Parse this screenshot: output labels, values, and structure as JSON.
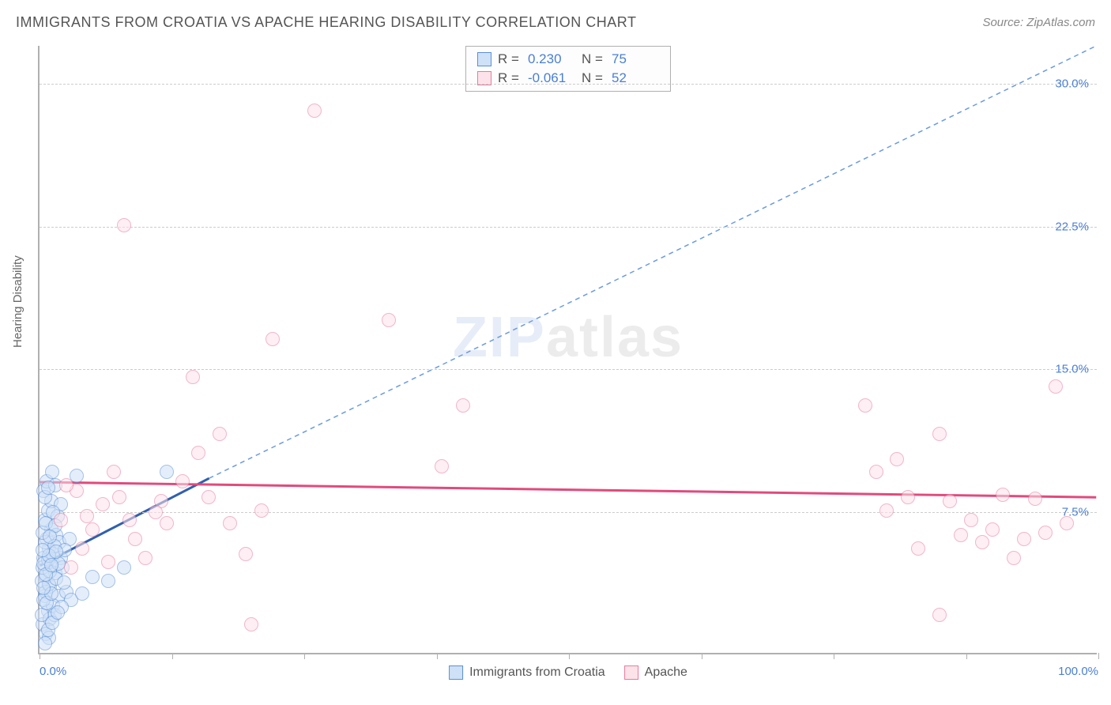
{
  "title": "IMMIGRANTS FROM CROATIA VS APACHE HEARING DISABILITY CORRELATION CHART",
  "source": "Source: ZipAtlas.com",
  "y_label": "Hearing Disability",
  "watermark_zip": "ZIP",
  "watermark_atlas": "atlas",
  "chart": {
    "type": "scatter",
    "xlim": [
      0,
      100
    ],
    "ylim": [
      0,
      32
    ],
    "x_ticks": [
      0,
      12.5,
      25,
      37.5,
      50,
      62.5,
      75,
      87.5,
      100
    ],
    "x_tick_labels": {
      "0": "0.0%",
      "100": "100.0%"
    },
    "y_gridlines": [
      7.5,
      15.0,
      22.5,
      30.0
    ],
    "y_tick_labels": [
      "7.5%",
      "15.0%",
      "22.5%",
      "30.0%"
    ],
    "grid_color": "#cccccc",
    "background_color": "#ffffff",
    "axis_color": "#b0b0b0",
    "tick_label_color": "#4a7fd4",
    "marker_radius": 9,
    "marker_stroke_width": 1.5,
    "series": [
      {
        "name": "Immigrants from Croatia",
        "fill": "#cfe1f7",
        "stroke": "#5b8fd6",
        "fill_opacity": 0.55,
        "R": "0.230",
        "N": "75",
        "trend": {
          "x1": 0,
          "y1": 4.6,
          "x2": 16,
          "y2": 9.2,
          "color": "#2f5fb0",
          "width": 3,
          "dash": "none"
        },
        "trend_ext": {
          "x1": 16,
          "y1": 9.2,
          "x2": 100,
          "y2": 32,
          "color": "#6a9be0",
          "width": 1.5,
          "dash": "6,5"
        },
        "points": [
          [
            0.5,
            3.0
          ],
          [
            0.8,
            2.2
          ],
          [
            0.6,
            4.0
          ],
          [
            1.0,
            3.5
          ],
          [
            1.2,
            4.8
          ],
          [
            0.4,
            5.0
          ],
          [
            0.9,
            5.5
          ],
          [
            1.5,
            4.2
          ],
          [
            1.8,
            3.0
          ],
          [
            2.0,
            5.0
          ],
          [
            0.7,
            6.0
          ],
          [
            1.1,
            6.5
          ],
          [
            1.3,
            2.5
          ],
          [
            0.3,
            1.5
          ],
          [
            0.6,
            1.0
          ],
          [
            1.0,
            1.8
          ],
          [
            1.4,
            2.0
          ],
          [
            0.5,
            7.0
          ],
          [
            0.8,
            7.5
          ],
          [
            1.6,
            6.2
          ],
          [
            2.2,
            4.5
          ],
          [
            2.5,
            3.2
          ],
          [
            0.2,
            3.8
          ],
          [
            0.9,
            0.8
          ],
          [
            1.1,
            8.0
          ],
          [
            1.7,
            7.2
          ],
          [
            0.4,
            8.5
          ],
          [
            0.7,
            9.0
          ],
          [
            1.9,
            5.8
          ],
          [
            3.0,
            2.8
          ],
          [
            3.5,
            9.3
          ],
          [
            4.0,
            3.1
          ],
          [
            0.3,
            4.5
          ],
          [
            0.6,
            3.2
          ],
          [
            1.2,
            9.5
          ],
          [
            1.5,
            8.8
          ],
          [
            2.8,
            6.0
          ],
          [
            5.0,
            4.0
          ],
          [
            6.5,
            3.8
          ],
          [
            8.0,
            4.5
          ],
          [
            1.0,
            4.3
          ],
          [
            0.8,
            4.9
          ],
          [
            0.5,
            5.8
          ],
          [
            1.3,
            5.2
          ],
          [
            1.8,
            4.7
          ],
          [
            0.4,
            2.8
          ],
          [
            0.9,
            3.6
          ],
          [
            1.6,
            3.9
          ],
          [
            2.1,
            2.4
          ],
          [
            0.2,
            2.0
          ],
          [
            0.7,
            2.6
          ],
          [
            1.1,
            3.1
          ],
          [
            1.4,
            5.6
          ],
          [
            0.3,
            6.3
          ],
          [
            0.6,
            6.8
          ],
          [
            2.4,
            5.4
          ],
          [
            0.5,
            0.5
          ],
          [
            0.8,
            1.2
          ],
          [
            1.2,
            1.6
          ],
          [
            1.7,
            2.1
          ],
          [
            0.4,
            4.7
          ],
          [
            0.9,
            5.1
          ],
          [
            1.5,
            6.7
          ],
          [
            2.0,
            7.8
          ],
          [
            12.0,
            9.5
          ],
          [
            0.3,
            5.4
          ],
          [
            0.6,
            4.1
          ],
          [
            1.0,
            6.1
          ],
          [
            1.3,
            7.4
          ],
          [
            0.5,
            8.2
          ],
          [
            0.8,
            8.7
          ],
          [
            1.1,
            4.6
          ],
          [
            1.6,
            5.3
          ],
          [
            2.3,
            3.7
          ],
          [
            0.4,
            3.4
          ]
        ]
      },
      {
        "name": "Apache",
        "fill": "#fce3ea",
        "stroke": "#e87a9e",
        "fill_opacity": 0.55,
        "R": "-0.061",
        "N": "52",
        "trend": {
          "x1": 0,
          "y1": 9.0,
          "x2": 100,
          "y2": 8.2,
          "color": "#e24a7c",
          "width": 3,
          "dash": "none"
        },
        "points": [
          [
            2.0,
            7.0
          ],
          [
            3.5,
            8.5
          ],
          [
            5.0,
            6.5
          ],
          [
            6.0,
            7.8
          ],
          [
            7.5,
            8.2
          ],
          [
            9.0,
            6.0
          ],
          [
            4.0,
            5.5
          ],
          [
            8.5,
            7.0
          ],
          [
            10.0,
            5.0
          ],
          [
            11.5,
            8.0
          ],
          [
            13.5,
            9.0
          ],
          [
            15.0,
            10.5
          ],
          [
            17.0,
            11.5
          ],
          [
            20.0,
            1.5
          ],
          [
            22.0,
            16.5
          ],
          [
            8.0,
            22.5
          ],
          [
            14.5,
            14.5
          ],
          [
            16.0,
            8.2
          ],
          [
            18.0,
            6.8
          ],
          [
            19.5,
            5.2
          ],
          [
            21.0,
            7.5
          ],
          [
            6.5,
            4.8
          ],
          [
            3.0,
            4.5
          ],
          [
            26.0,
            28.5
          ],
          [
            33.0,
            17.5
          ],
          [
            38.0,
            9.8
          ],
          [
            40.0,
            13.0
          ],
          [
            78.0,
            13.0
          ],
          [
            80.0,
            7.5
          ],
          [
            82.0,
            8.2
          ],
          [
            83.0,
            5.5
          ],
          [
            85.0,
            11.5
          ],
          [
            86.0,
            8.0
          ],
          [
            87.0,
            6.2
          ],
          [
            88.0,
            7.0
          ],
          [
            89.0,
            5.8
          ],
          [
            90.0,
            6.5
          ],
          [
            91.0,
            8.3
          ],
          [
            92.0,
            5.0
          ],
          [
            93.0,
            6.0
          ],
          [
            94.0,
            8.1
          ],
          [
            95.0,
            6.3
          ],
          [
            96.0,
            14.0
          ],
          [
            97.0,
            6.8
          ],
          [
            85.0,
            2.0
          ],
          [
            79.0,
            9.5
          ],
          [
            81.0,
            10.2
          ],
          [
            2.5,
            8.8
          ],
          [
            4.5,
            7.2
          ],
          [
            12.0,
            6.8
          ],
          [
            7.0,
            9.5
          ],
          [
            11.0,
            7.4
          ]
        ]
      }
    ]
  },
  "legend_top": {
    "r_label": "R =",
    "n_label": "N ="
  },
  "legend_bottom_labels": [
    "Immigrants from Croatia",
    "Apache"
  ]
}
